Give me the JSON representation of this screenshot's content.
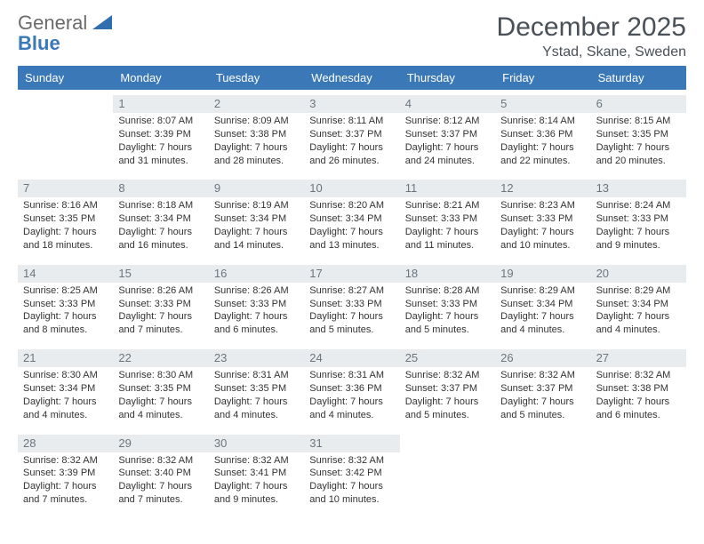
{
  "logo": {
    "line1": "General",
    "line2": "Blue",
    "color1": "#6b6b6b",
    "color2": "#3a78b8"
  },
  "title": "December 2025",
  "location": "Ystad, Skane, Sweden",
  "header_bg": "#3a78b8",
  "header_text": "#ffffff",
  "daynum_bg": "#e9ecef",
  "daynum_color": "#6c757d",
  "info_color": "#333333",
  "info_fontsize": 11,
  "day_names": [
    "Sunday",
    "Monday",
    "Tuesday",
    "Wednesday",
    "Thursday",
    "Friday",
    "Saturday"
  ],
  "weeks": [
    [
      {
        "n": "",
        "sunrise": "",
        "sunset": "",
        "daylight": ""
      },
      {
        "n": "1",
        "sunrise": "Sunrise: 8:07 AM",
        "sunset": "Sunset: 3:39 PM",
        "daylight": "Daylight: 7 hours and 31 minutes."
      },
      {
        "n": "2",
        "sunrise": "Sunrise: 8:09 AM",
        "sunset": "Sunset: 3:38 PM",
        "daylight": "Daylight: 7 hours and 28 minutes."
      },
      {
        "n": "3",
        "sunrise": "Sunrise: 8:11 AM",
        "sunset": "Sunset: 3:37 PM",
        "daylight": "Daylight: 7 hours and 26 minutes."
      },
      {
        "n": "4",
        "sunrise": "Sunrise: 8:12 AM",
        "sunset": "Sunset: 3:37 PM",
        "daylight": "Daylight: 7 hours and 24 minutes."
      },
      {
        "n": "5",
        "sunrise": "Sunrise: 8:14 AM",
        "sunset": "Sunset: 3:36 PM",
        "daylight": "Daylight: 7 hours and 22 minutes."
      },
      {
        "n": "6",
        "sunrise": "Sunrise: 8:15 AM",
        "sunset": "Sunset: 3:35 PM",
        "daylight": "Daylight: 7 hours and 20 minutes."
      }
    ],
    [
      {
        "n": "7",
        "sunrise": "Sunrise: 8:16 AM",
        "sunset": "Sunset: 3:35 PM",
        "daylight": "Daylight: 7 hours and 18 minutes."
      },
      {
        "n": "8",
        "sunrise": "Sunrise: 8:18 AM",
        "sunset": "Sunset: 3:34 PM",
        "daylight": "Daylight: 7 hours and 16 minutes."
      },
      {
        "n": "9",
        "sunrise": "Sunrise: 8:19 AM",
        "sunset": "Sunset: 3:34 PM",
        "daylight": "Daylight: 7 hours and 14 minutes."
      },
      {
        "n": "10",
        "sunrise": "Sunrise: 8:20 AM",
        "sunset": "Sunset: 3:34 PM",
        "daylight": "Daylight: 7 hours and 13 minutes."
      },
      {
        "n": "11",
        "sunrise": "Sunrise: 8:21 AM",
        "sunset": "Sunset: 3:33 PM",
        "daylight": "Daylight: 7 hours and 11 minutes."
      },
      {
        "n": "12",
        "sunrise": "Sunrise: 8:23 AM",
        "sunset": "Sunset: 3:33 PM",
        "daylight": "Daylight: 7 hours and 10 minutes."
      },
      {
        "n": "13",
        "sunrise": "Sunrise: 8:24 AM",
        "sunset": "Sunset: 3:33 PM",
        "daylight": "Daylight: 7 hours and 9 minutes."
      }
    ],
    [
      {
        "n": "14",
        "sunrise": "Sunrise: 8:25 AM",
        "sunset": "Sunset: 3:33 PM",
        "daylight": "Daylight: 7 hours and 8 minutes."
      },
      {
        "n": "15",
        "sunrise": "Sunrise: 8:26 AM",
        "sunset": "Sunset: 3:33 PM",
        "daylight": "Daylight: 7 hours and 7 minutes."
      },
      {
        "n": "16",
        "sunrise": "Sunrise: 8:26 AM",
        "sunset": "Sunset: 3:33 PM",
        "daylight": "Daylight: 7 hours and 6 minutes."
      },
      {
        "n": "17",
        "sunrise": "Sunrise: 8:27 AM",
        "sunset": "Sunset: 3:33 PM",
        "daylight": "Daylight: 7 hours and 5 minutes."
      },
      {
        "n": "18",
        "sunrise": "Sunrise: 8:28 AM",
        "sunset": "Sunset: 3:33 PM",
        "daylight": "Daylight: 7 hours and 5 minutes."
      },
      {
        "n": "19",
        "sunrise": "Sunrise: 8:29 AM",
        "sunset": "Sunset: 3:34 PM",
        "daylight": "Daylight: 7 hours and 4 minutes."
      },
      {
        "n": "20",
        "sunrise": "Sunrise: 8:29 AM",
        "sunset": "Sunset: 3:34 PM",
        "daylight": "Daylight: 7 hours and 4 minutes."
      }
    ],
    [
      {
        "n": "21",
        "sunrise": "Sunrise: 8:30 AM",
        "sunset": "Sunset: 3:34 PM",
        "daylight": "Daylight: 7 hours and 4 minutes."
      },
      {
        "n": "22",
        "sunrise": "Sunrise: 8:30 AM",
        "sunset": "Sunset: 3:35 PM",
        "daylight": "Daylight: 7 hours and 4 minutes."
      },
      {
        "n": "23",
        "sunrise": "Sunrise: 8:31 AM",
        "sunset": "Sunset: 3:35 PM",
        "daylight": "Daylight: 7 hours and 4 minutes."
      },
      {
        "n": "24",
        "sunrise": "Sunrise: 8:31 AM",
        "sunset": "Sunset: 3:36 PM",
        "daylight": "Daylight: 7 hours and 4 minutes."
      },
      {
        "n": "25",
        "sunrise": "Sunrise: 8:32 AM",
        "sunset": "Sunset: 3:37 PM",
        "daylight": "Daylight: 7 hours and 5 minutes."
      },
      {
        "n": "26",
        "sunrise": "Sunrise: 8:32 AM",
        "sunset": "Sunset: 3:37 PM",
        "daylight": "Daylight: 7 hours and 5 minutes."
      },
      {
        "n": "27",
        "sunrise": "Sunrise: 8:32 AM",
        "sunset": "Sunset: 3:38 PM",
        "daylight": "Daylight: 7 hours and 6 minutes."
      }
    ],
    [
      {
        "n": "28",
        "sunrise": "Sunrise: 8:32 AM",
        "sunset": "Sunset: 3:39 PM",
        "daylight": "Daylight: 7 hours and 7 minutes."
      },
      {
        "n": "29",
        "sunrise": "Sunrise: 8:32 AM",
        "sunset": "Sunset: 3:40 PM",
        "daylight": "Daylight: 7 hours and 7 minutes."
      },
      {
        "n": "30",
        "sunrise": "Sunrise: 8:32 AM",
        "sunset": "Sunset: 3:41 PM",
        "daylight": "Daylight: 7 hours and 9 minutes."
      },
      {
        "n": "31",
        "sunrise": "Sunrise: 8:32 AM",
        "sunset": "Sunset: 3:42 PM",
        "daylight": "Daylight: 7 hours and 10 minutes."
      },
      {
        "n": "",
        "sunrise": "",
        "sunset": "",
        "daylight": ""
      },
      {
        "n": "",
        "sunrise": "",
        "sunset": "",
        "daylight": ""
      },
      {
        "n": "",
        "sunrise": "",
        "sunset": "",
        "daylight": ""
      }
    ]
  ]
}
